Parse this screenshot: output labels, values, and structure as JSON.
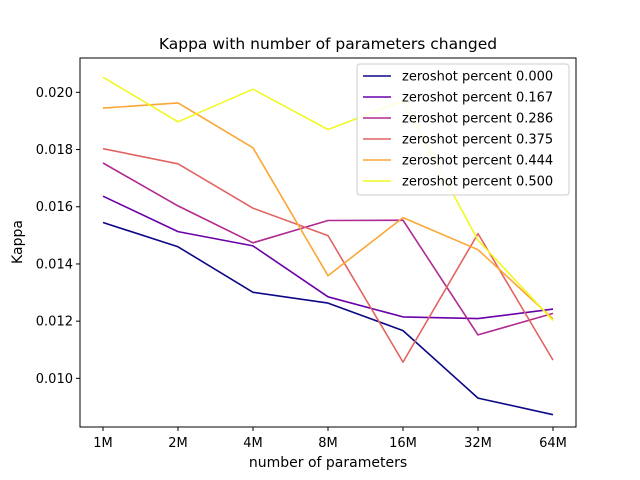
{
  "chart_data": {
    "type": "line",
    "title": "Kappa with number of parameters changed",
    "xlabel": "number of parameters",
    "ylabel": "Kappa",
    "categories": [
      "1M",
      "2M",
      "4M",
      "8M",
      "16M",
      "32M",
      "64M"
    ],
    "ylim": [
      0.0083,
      0.0212
    ],
    "yticks": [
      0.01,
      0.012,
      0.014,
      0.016,
      0.018,
      0.02
    ],
    "ytick_labels": [
      "0.010",
      "0.012",
      "0.014",
      "0.016",
      "0.018",
      "0.020"
    ],
    "grid": false,
    "legend_position": "top-right",
    "series": [
      {
        "name": "zeroshot percent 0.000",
        "color": "#0d0887",
        "values": [
          0.01545,
          0.0146,
          0.01301,
          0.01263,
          0.01167,
          0.00931,
          0.00873
        ]
      },
      {
        "name": "zeroshot percent 0.167",
        "color": "#6a00a8",
        "values": [
          0.01637,
          0.01513,
          0.01463,
          0.01285,
          0.01215,
          0.01209,
          0.01242
        ]
      },
      {
        "name": "zeroshot percent 0.286",
        "color": "#b12a90",
        "values": [
          0.01753,
          0.01603,
          0.01474,
          0.01552,
          0.01553,
          0.01152,
          0.01227
        ]
      },
      {
        "name": "zeroshot percent 0.375",
        "color": "#e16462",
        "values": [
          0.01803,
          0.0175,
          0.01595,
          0.01499,
          0.01057,
          0.01506,
          0.01064
        ]
      },
      {
        "name": "zeroshot percent 0.444",
        "color": "#fca636",
        "values": [
          0.01945,
          0.01963,
          0.01806,
          0.01359,
          0.01562,
          0.0145,
          0.01208
        ]
      },
      {
        "name": "zeroshot percent 0.500",
        "color": "#f0f921",
        "values": [
          0.02053,
          0.01897,
          0.02011,
          0.0187,
          0.0197,
          0.01483,
          0.01202
        ]
      }
    ]
  }
}
